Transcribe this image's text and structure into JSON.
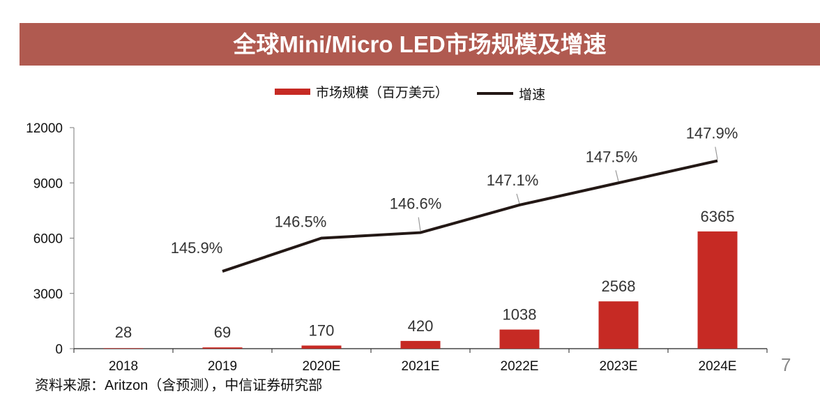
{
  "title": "全球Mini/Micro LED市场规模及增速",
  "source": "资料来源：Aritzon（含预测），中信证券研究部",
  "page_number": "7",
  "chart_data": {
    "type": "bar+line",
    "title": "全球Mini/Micro LED市场规模及增速",
    "categories": [
      "2018",
      "2019",
      "2020E",
      "2021E",
      "2022E",
      "2023E",
      "2024E"
    ],
    "series": [
      {
        "name": "市场规模（百万美元）",
        "type": "bar",
        "axis": "left",
        "color": "#c62a24",
        "values": [
          28,
          69,
          170,
          420,
          1038,
          2568,
          6365
        ],
        "labels": [
          "28",
          "69",
          "170",
          "420",
          "1038",
          "2568",
          "6365"
        ]
      },
      {
        "name": "增速",
        "type": "line",
        "axis": "right-hidden",
        "color": "#231815",
        "values": [
          null,
          145.9,
          146.5,
          146.6,
          147.1,
          147.5,
          147.9
        ],
        "labels": [
          "",
          "145.9%",
          "146.5%",
          "146.6%",
          "147.1%",
          "147.5%",
          "147.9%"
        ]
      }
    ],
    "ylim": [
      0,
      12000
    ],
    "yticks": [
      "0",
      "3000",
      "6000",
      "9000",
      "12000"
    ],
    "y2lim": [
      144.5,
      148.5
    ],
    "grid": false,
    "legend": "top-center"
  }
}
